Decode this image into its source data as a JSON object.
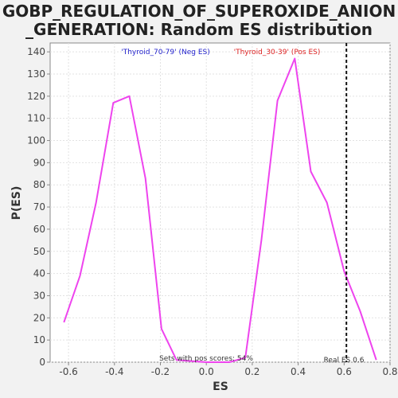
{
  "chart_data": {
    "type": "line",
    "title_lines": [
      "GOBP_REGULATION_OF_SUPEROXIDE_ANION",
      "_GENERATION: Random ES distribution"
    ],
    "xlabel": "ES",
    "ylabel": "P(ES)",
    "xlim": [
      -0.68,
      0.8
    ],
    "ylim": [
      0,
      144
    ],
    "x_ticks": [
      -0.6,
      -0.4,
      -0.2,
      0.0,
      0.2,
      0.4,
      0.6,
      0.8
    ],
    "x_tick_labels": [
      "-0.6",
      "-0.4",
      "-0.2",
      "0.0",
      "0.2",
      "0.4",
      "0.6",
      "0.8"
    ],
    "y_ticks": [
      0,
      10,
      20,
      30,
      40,
      50,
      60,
      70,
      80,
      90,
      100,
      110,
      120,
      130,
      140
    ],
    "y_tick_labels": [
      "0",
      "10",
      "20",
      "30",
      "40",
      "50",
      "60",
      "70",
      "80",
      "90",
      "100",
      "110",
      "120",
      "130",
      "140"
    ],
    "grid": true,
    "series": [
      {
        "color": "#ee44ee",
        "x": [
          -0.62,
          -0.55,
          -0.48,
          -0.405,
          -0.335,
          -0.265,
          -0.195,
          -0.13,
          0.0,
          0.1,
          0.17,
          0.24,
          0.31,
          0.385,
          0.455,
          0.525,
          0.6,
          0.67,
          0.74
        ],
        "y": [
          18,
          39,
          72,
          117,
          120,
          83,
          15,
          1,
          0,
          0,
          2,
          55,
          118,
          137,
          86,
          72,
          41,
          23,
          1
        ]
      }
    ],
    "vline": {
      "x": 0.61,
      "label": "Real ES 0.6"
    },
    "legend": [
      {
        "text": "'Thyroid_70-79' (Neg ES)",
        "color": "#2222cc"
      },
      {
        "text": "'Thyroid_30-39' (Pos ES)",
        "color": "#dd2222"
      }
    ],
    "annotation": "Sets with pos scores: 54%"
  }
}
